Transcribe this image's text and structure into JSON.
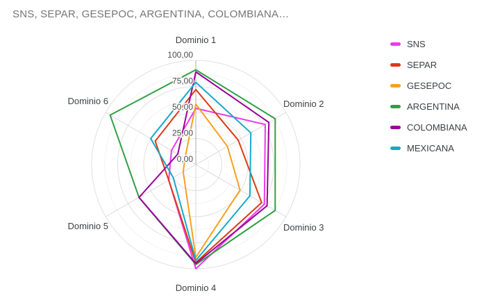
{
  "title": "SNS, SEPAR, GESEPOC, ARGENTINA, COLOMBIANA…",
  "legend": {
    "position": "right",
    "items": [
      {
        "label": "SNS",
        "color": "#EB3BEB"
      },
      {
        "label": "SEPAR",
        "color": "#DC3912"
      },
      {
        "label": "GESEPOC",
        "color": "#F99F1F"
      },
      {
        "label": "ARGENTINA",
        "color": "#2FA042"
      },
      {
        "label": "COLOMBIANA",
        "color": "#990099"
      },
      {
        "label": "MEXICANA",
        "color": "#15A8C9"
      }
    ]
  },
  "chart_data": {
    "type": "radar",
    "title": "SNS, SEPAR, GESEPOC, ARGENTINA, COLOMBIANA…",
    "categories": [
      "Dominio 1",
      "Dominio 2",
      "Dominio 3",
      "Dominio 4",
      "Dominio 5",
      "Dominio 6"
    ],
    "series": [
      {
        "name": "SNS",
        "color": "#EB3BEB",
        "values": [
          54,
          77,
          76,
          100,
          30,
          27
        ]
      },
      {
        "name": "SEPAR",
        "color": "#DC3912",
        "values": [
          72,
          47,
          73,
          94,
          30,
          45
        ]
      },
      {
        "name": "GESEPOC",
        "color": "#F99F1F",
        "values": [
          58,
          35,
          49,
          89,
          14,
          12
        ]
      },
      {
        "name": "ARGENTINA",
        "color": "#2FA042",
        "values": [
          91,
          88,
          88,
          96,
          63,
          95
        ]
      },
      {
        "name": "COLOMBIANA",
        "color": "#990099",
        "values": [
          89,
          81,
          79,
          95,
          63,
          20
        ]
      },
      {
        "name": "MEXICANA",
        "color": "#15A8C9",
        "values": [
          79,
          61,
          60,
          92,
          25,
          50
        ]
      }
    ],
    "rmin": 0,
    "rmax": 100,
    "ticks": [
      {
        "value": 100,
        "label": "100,00"
      },
      {
        "value": 75,
        "label": "75,00"
      },
      {
        "value": 50,
        "label": "50,00"
      },
      {
        "value": 25,
        "label": "25,00"
      },
      {
        "value": 0,
        "label": "0,00"
      }
    ],
    "major_gridlines": [
      25,
      50,
      75,
      100
    ],
    "minor_gridlines": [
      12.5,
      37.5,
      62.5,
      87.5
    ],
    "grid": true,
    "fill": "none",
    "legend_position": "right"
  }
}
